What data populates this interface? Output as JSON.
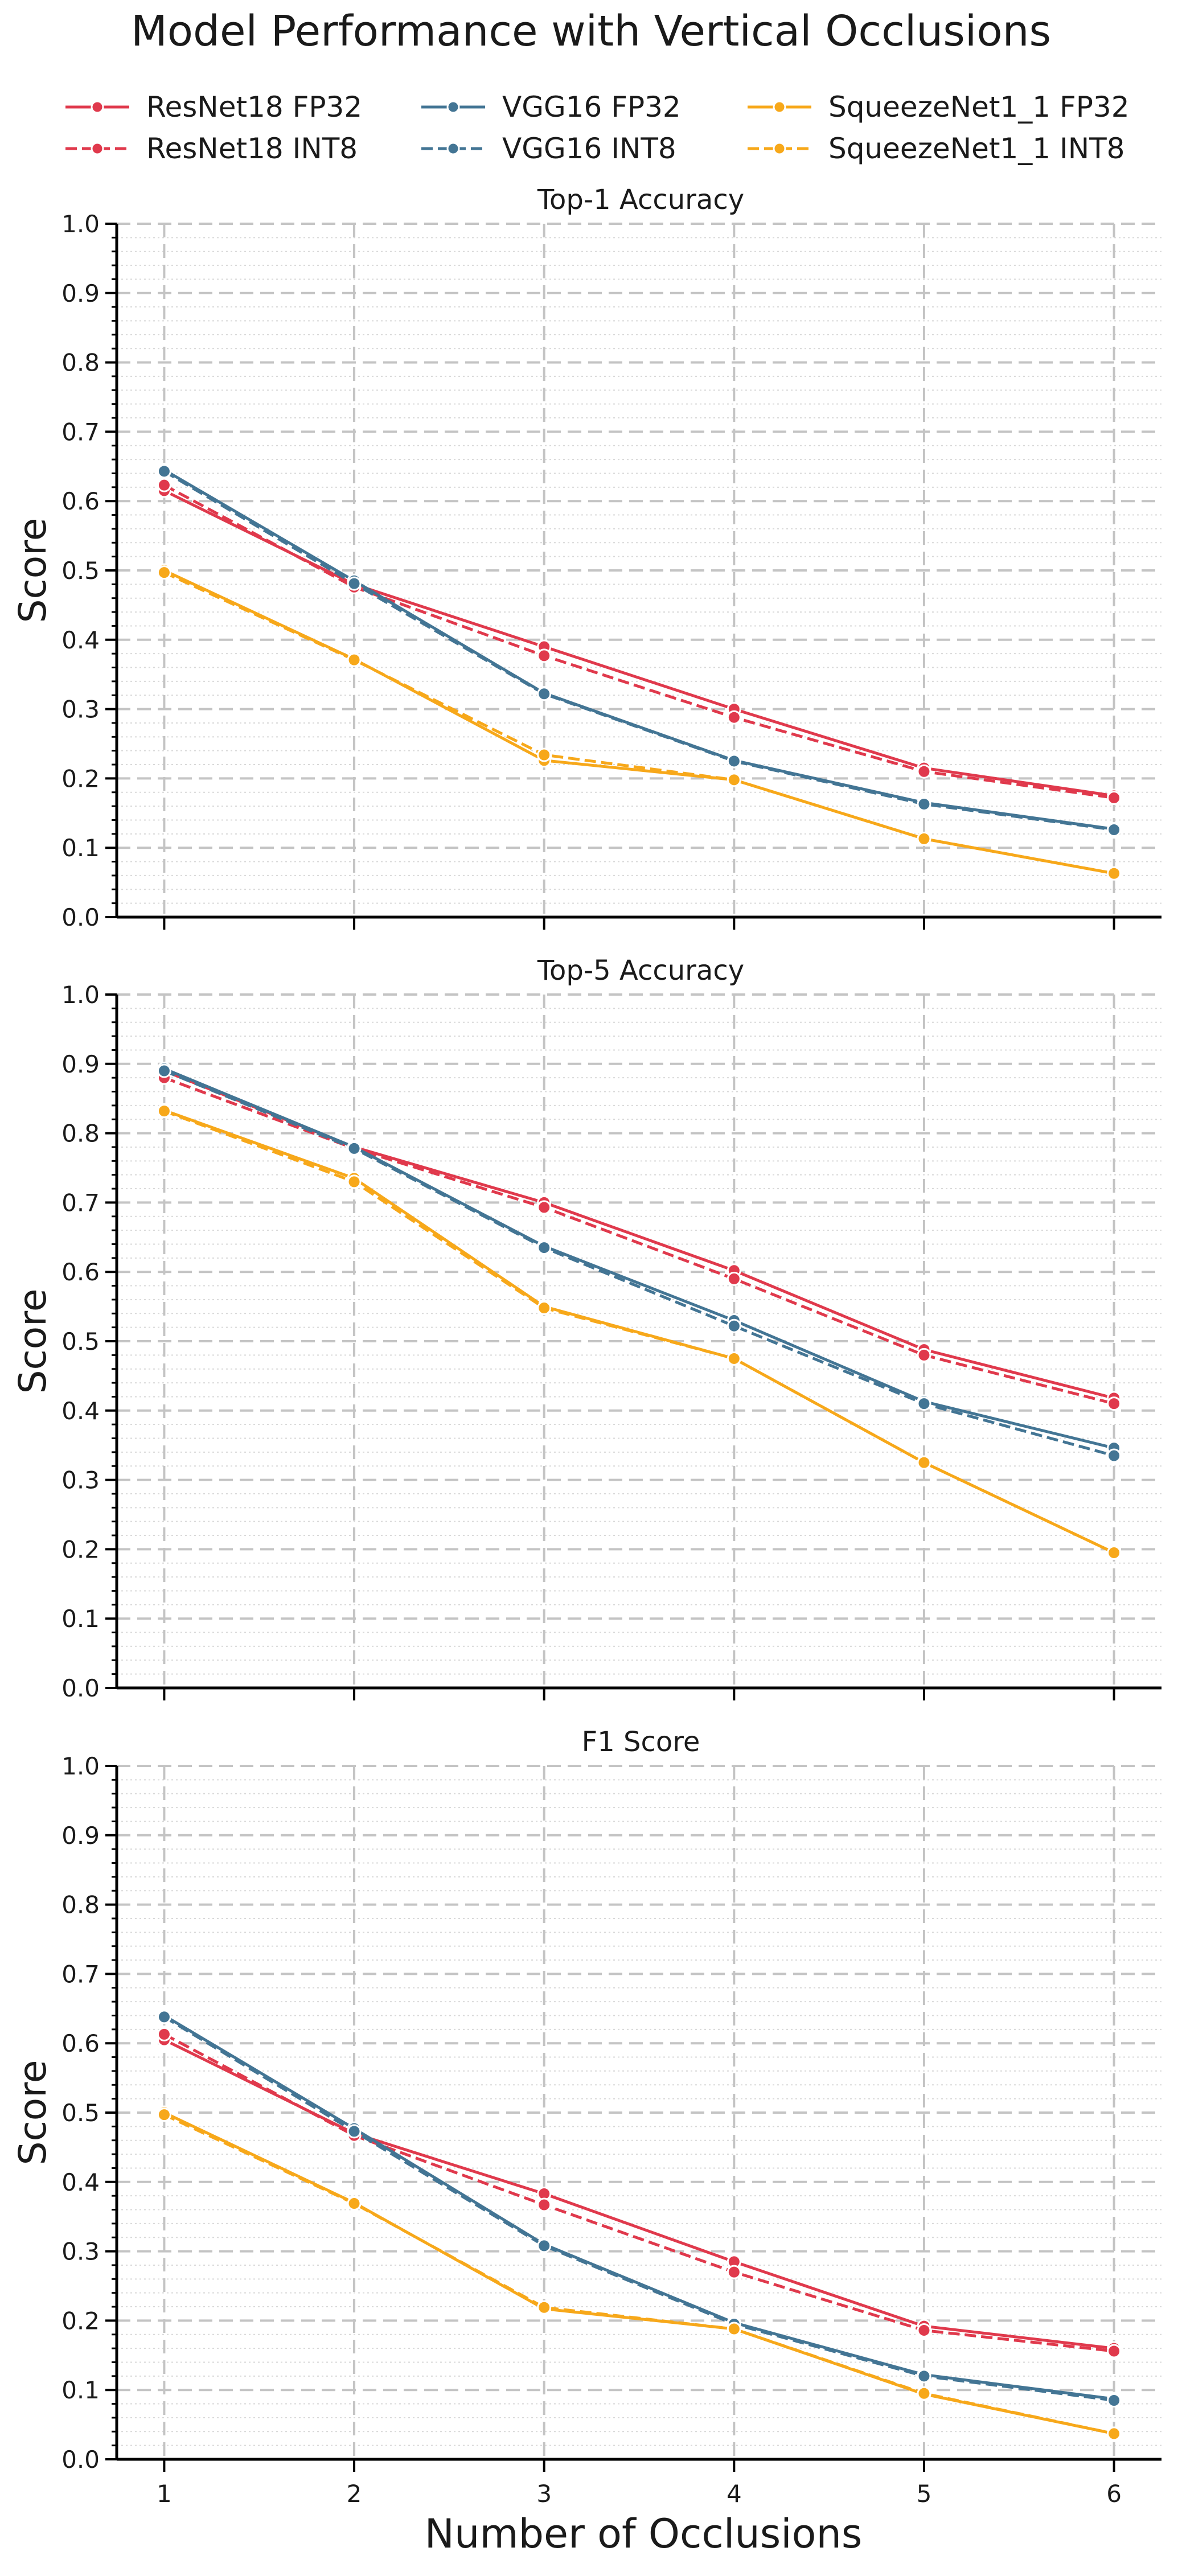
{
  "chart_data": {
    "type": "line",
    "title": "Model Performance with Vertical Occlusions",
    "xlabel": "Number of Occlusions",
    "ylabel": "Score",
    "x": [
      1,
      2,
      3,
      4,
      5,
      6
    ],
    "xlim": [
      0.75,
      6.25
    ],
    "ylim": [
      0,
      1
    ],
    "yticks": [
      "0.0",
      "0.1",
      "0.2",
      "0.3",
      "0.4",
      "0.5",
      "0.6",
      "0.7",
      "0.8",
      "0.9",
      "1.0"
    ],
    "grid": true,
    "legend_placement": "top",
    "series_styles": [
      {
        "name": "ResNet18 FP32",
        "color": "#e0394c",
        "dash": "solid"
      },
      {
        "name": "ResNet18 INT8",
        "color": "#e0394c",
        "dash": "dashed"
      },
      {
        "name": "VGG16 FP32",
        "color": "#437594",
        "dash": "solid"
      },
      {
        "name": "VGG16 INT8",
        "color": "#437594",
        "dash": "dashed"
      },
      {
        "name": "SqueezeNet1_1 FP32",
        "color": "#f7a81a",
        "dash": "solid"
      },
      {
        "name": "SqueezeNet1_1 INT8",
        "color": "#f7a81a",
        "dash": "dashed"
      }
    ],
    "panels": [
      {
        "title": "Top-1 Accuracy",
        "series": [
          {
            "name": "ResNet18 FP32",
            "values": [
              0.615,
              0.48,
              0.39,
              0.3,
              0.215,
              0.175
            ]
          },
          {
            "name": "ResNet18 INT8",
            "values": [
              0.623,
              0.476,
              0.377,
              0.288,
              0.21,
              0.172
            ]
          },
          {
            "name": "VGG16 FP32",
            "values": [
              0.645,
              0.485,
              0.323,
              0.226,
              0.165,
              0.127
            ]
          },
          {
            "name": "VGG16 INT8",
            "values": [
              0.643,
              0.481,
              0.322,
              0.225,
              0.163,
              0.126
            ]
          },
          {
            "name": "SqueezeNet1_1 FP32",
            "values": [
              0.5,
              0.372,
              0.226,
              0.198,
              0.113,
              0.063
            ]
          },
          {
            "name": "SqueezeNet1_1 INT8",
            "values": [
              0.497,
              0.371,
              0.234,
              0.198,
              0.113,
              0.063
            ]
          }
        ]
      },
      {
        "title": "Top-5 Accuracy",
        "series": [
          {
            "name": "ResNet18 FP32",
            "values": [
              0.89,
              0.78,
              0.7,
              0.602,
              0.488,
              0.418
            ]
          },
          {
            "name": "ResNet18 INT8",
            "values": [
              0.88,
              0.778,
              0.693,
              0.59,
              0.48,
              0.41
            ]
          },
          {
            "name": "VGG16 FP32",
            "values": [
              0.893,
              0.78,
              0.637,
              0.53,
              0.413,
              0.346
            ]
          },
          {
            "name": "VGG16 INT8",
            "values": [
              0.89,
              0.778,
              0.635,
              0.522,
              0.41,
              0.335
            ]
          },
          {
            "name": "SqueezeNet1_1 FP32",
            "values": [
              0.833,
              0.735,
              0.55,
              0.475,
              0.325,
              0.195
            ]
          },
          {
            "name": "SqueezeNet1_1 INT8",
            "values": [
              0.832,
              0.73,
              0.548,
              0.475,
              0.325,
              0.195
            ]
          }
        ]
      },
      {
        "title": "F1 Score",
        "series": [
          {
            "name": "ResNet18 FP32",
            "values": [
              0.605,
              0.47,
              0.383,
              0.285,
              0.192,
              0.16
            ]
          },
          {
            "name": "ResNet18 INT8",
            "values": [
              0.613,
              0.467,
              0.367,
              0.27,
              0.186,
              0.156
            ]
          },
          {
            "name": "VGG16 FP32",
            "values": [
              0.64,
              0.477,
              0.31,
              0.197,
              0.122,
              0.087
            ]
          },
          {
            "name": "VGG16 INT8",
            "values": [
              0.638,
              0.473,
              0.308,
              0.195,
              0.12,
              0.085
            ]
          },
          {
            "name": "SqueezeNet1_1 FP32",
            "values": [
              0.5,
              0.37,
              0.217,
              0.188,
              0.094,
              0.037
            ]
          },
          {
            "name": "SqueezeNet1_1 INT8",
            "values": [
              0.497,
              0.369,
              0.219,
              0.188,
              0.095,
              0.037
            ]
          }
        ]
      }
    ]
  }
}
